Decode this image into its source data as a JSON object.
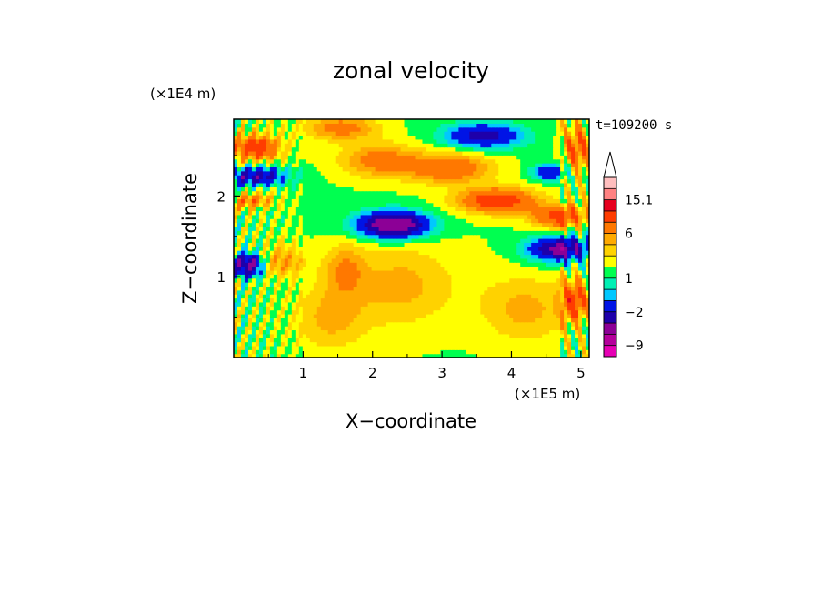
{
  "chart_data": {
    "type": "heatmap",
    "title": "zonal velocity",
    "xlabel": "X−coordinate",
    "ylabel": "Z−coordinate",
    "x_scale_label": "(×1E5 m)",
    "y_scale_label": "(×1E4 m)",
    "time_label": "t=109200 s",
    "xlim": [
      0,
      5.12
    ],
    "ylim": [
      0,
      2.95
    ],
    "x_ticks": [
      {
        "value": 1,
        "label": "1"
      },
      {
        "value": 2,
        "label": "2"
      },
      {
        "value": 3,
        "label": "3"
      },
      {
        "value": 4,
        "label": "4"
      },
      {
        "value": 5,
        "label": "5"
      }
    ],
    "y_ticks": [
      {
        "value": 1,
        "label": "1"
      },
      {
        "value": 2,
        "label": "2"
      }
    ],
    "grid": false,
    "colorbar": {
      "position": "right",
      "levels": [
        {
          "max": -12,
          "color": "#e600b4"
        },
        {
          "max": -9,
          "color": "#b4009b"
        },
        {
          "max": -6,
          "color": "#8c0096"
        },
        {
          "max": -4,
          "color": "#1e00aa"
        },
        {
          "max": -2,
          "color": "#0014e6"
        },
        {
          "max": -1,
          "color": "#00c8ff"
        },
        {
          "max": 0,
          "color": "#00f0b4"
        },
        {
          "max": 1,
          "color": "#00ff50"
        },
        {
          "max": 2,
          "color": "#ffff00"
        },
        {
          "max": 3,
          "color": "#ffd200"
        },
        {
          "max": 4,
          "color": "#ffaa00"
        },
        {
          "max": 6,
          "color": "#ff7800"
        },
        {
          "max": 9,
          "color": "#ff3c00"
        },
        {
          "max": 12,
          "color": "#e6001e"
        },
        {
          "max": 15.1,
          "color": "#ff8282"
        },
        {
          "max": 20,
          "color": "#ffbebe"
        }
      ],
      "labels": [
        {
          "value": 15.1,
          "text": "15.1"
        },
        {
          "value": 6,
          "text": "6"
        },
        {
          "value": 1,
          "text": "1"
        },
        {
          "value": -2,
          "text": "−2"
        },
        {
          "value": -9,
          "text": "−9"
        }
      ],
      "extend_top": true
    },
    "features": [
      {
        "x": 0.3,
        "z": 2.6,
        "amp": 7,
        "rx": 0.35,
        "rz": 0.15
      },
      {
        "x": 0.3,
        "z": 2.25,
        "amp": -6,
        "rx": 0.45,
        "rz": 0.12
      },
      {
        "x": 0.25,
        "z": 1.95,
        "amp": 4,
        "rx": 0.3,
        "rz": 0.1
      },
      {
        "x": 0.2,
        "z": 1.15,
        "amp": -8,
        "rx": 0.22,
        "rz": 0.15
      },
      {
        "x": 0.7,
        "z": 1.2,
        "amp": 3,
        "rx": 0.3,
        "rz": 0.2
      },
      {
        "x": 1.55,
        "z": 2.85,
        "amp": 4,
        "rx": 0.5,
        "rz": 0.15
      },
      {
        "x": 2.1,
        "z": 2.45,
        "amp": 4,
        "rx": 0.55,
        "rz": 0.2
      },
      {
        "x": 2.3,
        "z": 1.65,
        "amp": -10,
        "rx": 0.5,
        "rz": 0.16
      },
      {
        "x": 1.7,
        "z": 2.05,
        "amp": 0,
        "rx": 0.6,
        "rz": 0.2
      },
      {
        "x": 3.6,
        "z": 2.75,
        "amp": -6,
        "rx": 0.55,
        "rz": 0.15
      },
      {
        "x": 3.1,
        "z": 2.35,
        "amp": 5,
        "rx": 0.6,
        "rz": 0.18
      },
      {
        "x": 3.8,
        "z": 1.95,
        "amp": 7,
        "rx": 0.55,
        "rz": 0.15
      },
      {
        "x": 4.7,
        "z": 1.75,
        "amp": 6,
        "rx": 0.4,
        "rz": 0.14
      },
      {
        "x": 4.7,
        "z": 1.35,
        "amp": -8,
        "rx": 0.45,
        "rz": 0.15
      },
      {
        "x": 4.55,
        "z": 2.3,
        "amp": -5,
        "rx": 0.25,
        "rz": 0.1
      },
      {
        "x": 4.95,
        "z": 2.6,
        "amp": 5,
        "rx": 0.2,
        "rz": 0.3
      },
      {
        "x": 2.4,
        "z": 0.9,
        "amp": 2.5,
        "rx": 0.7,
        "rz": 0.5
      },
      {
        "x": 1.4,
        "z": 0.5,
        "amp": 2.5,
        "rx": 0.5,
        "rz": 0.4
      },
      {
        "x": 4.2,
        "z": 0.6,
        "amp": 2.5,
        "rx": 0.6,
        "rz": 0.4
      },
      {
        "x": 3.4,
        "z": 0.9,
        "amp": 0.3,
        "rx": 0.6,
        "rz": 0.5
      },
      {
        "x": 4.9,
        "z": 0.7,
        "amp": 6,
        "rx": 0.2,
        "rz": 0.25
      },
      {
        "x": 1.6,
        "z": 1.1,
        "amp": 3,
        "rx": 0.3,
        "rz": 0.3
      }
    ]
  }
}
